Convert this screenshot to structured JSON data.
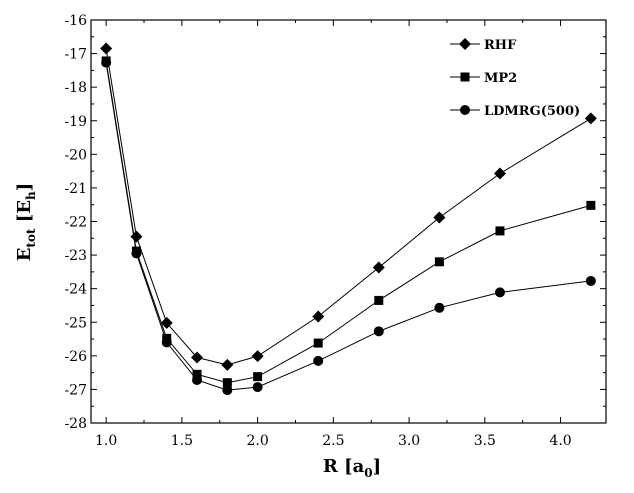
{
  "chart_data": {
    "type": "line",
    "title": "",
    "xlabel": "R [a0]",
    "xlabel_main": "R [a",
    "xlabel_sub": "0",
    "xlabel_end": "]",
    "ylabel": "Etot [Eh]",
    "ylabel_main": "E",
    "ylabel_sub1": "tot",
    "ylabel_mid": " [E",
    "ylabel_sub2": "h",
    "ylabel_end": "]",
    "xlim": [
      0.9,
      4.3
    ],
    "ylim": [
      -28,
      -16
    ],
    "xticks": [
      "1.0",
      "1.5",
      "2.0",
      "2.5",
      "3.0",
      "3.5",
      "4.0"
    ],
    "yticks": [
      "-16",
      "-17",
      "-18",
      "-19",
      "-20",
      "-21",
      "-22",
      "-23",
      "-24",
      "-25",
      "-26",
      "-27",
      "-28"
    ],
    "grid": false,
    "legend_position": "top-right",
    "x": [
      1.0,
      1.2,
      1.4,
      1.6,
      1.8,
      2.0,
      2.4,
      2.8,
      3.2,
      3.6,
      4.2
    ],
    "series": [
      {
        "name": "RHF",
        "marker": "diamond",
        "values": [
          -16.85,
          -22.45,
          -25.02,
          -26.05,
          -26.27,
          -26.01,
          -24.83,
          -23.37,
          -21.88,
          -20.57,
          -18.93
        ]
      },
      {
        "name": "MP2",
        "marker": "square",
        "values": [
          -17.22,
          -22.88,
          -25.48,
          -26.55,
          -26.8,
          -26.62,
          -25.62,
          -24.35,
          -23.2,
          -22.28,
          -21.52
        ]
      },
      {
        "name": "LDMRG(500)",
        "marker": "circle",
        "values": [
          -17.27,
          -22.95,
          -25.6,
          -26.72,
          -27.02,
          -26.93,
          -26.15,
          -25.27,
          -24.57,
          -24.11,
          -23.77
        ]
      }
    ]
  }
}
